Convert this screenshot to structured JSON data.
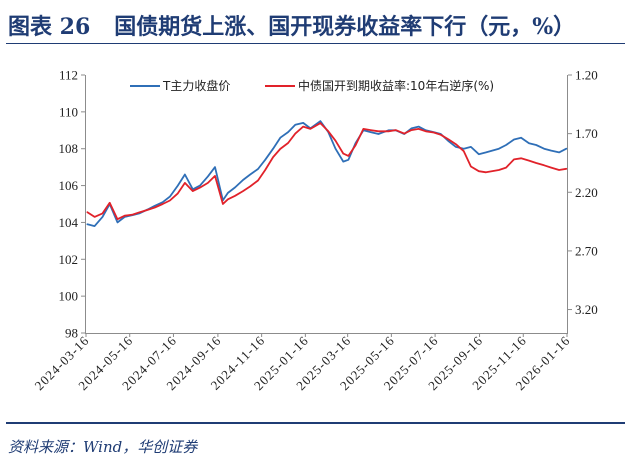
{
  "title": {
    "figure_no": "图表 26",
    "text": "国债期货上涨、国开现券收益率下行（元，%）"
  },
  "source": "资料来源：Wind，华创证券",
  "colors": {
    "title": "#1f3c74",
    "rule": "#1f3c74",
    "axis": "#8c8c8c",
    "series_t": "#2f6fb7",
    "series_yield": "#e1222a"
  },
  "chart_data": {
    "type": "line",
    "legend": "top",
    "grid": false,
    "xlim": [
      "2024-03-16",
      "2026-01-16"
    ],
    "x_ticks": [
      "2024-03-16",
      "2024-05-16",
      "2024-07-16",
      "2024-09-16",
      "2024-11-16",
      "2025-01-16",
      "2025-03-16",
      "2025-05-16",
      "2025-07-16",
      "2025-09-16",
      "2025-11-16",
      "2026-01-16"
    ],
    "y_left": {
      "ylim": [
        98,
        112
      ],
      "ticks": [
        98,
        100,
        102,
        104,
        106,
        108,
        110,
        112
      ]
    },
    "y_right": {
      "ylim": [
        1.2,
        3.4
      ],
      "reversed": true,
      "ticks": [
        1.2,
        1.7,
        2.2,
        2.7,
        3.2
      ]
    },
    "x": [
      "2024-03-18",
      "2024-03-28",
      "2024-04-08",
      "2024-04-18",
      "2024-04-29",
      "2024-05-09",
      "2024-05-20",
      "2024-05-30",
      "2024-06-10",
      "2024-06-20",
      "2024-07-01",
      "2024-07-11",
      "2024-07-22",
      "2024-08-01",
      "2024-08-12",
      "2024-08-22",
      "2024-09-02",
      "2024-09-12",
      "2024-09-23",
      "2024-09-30",
      "2024-10-10",
      "2024-10-21",
      "2024-10-31",
      "2024-11-11",
      "2024-11-21",
      "2024-12-02",
      "2024-12-12",
      "2024-12-23",
      "2025-01-02",
      "2025-01-13",
      "2025-01-23",
      "2025-02-06",
      "2025-02-17",
      "2025-02-27",
      "2025-03-10",
      "2025-03-17",
      "2025-03-27",
      "2025-04-07",
      "2025-04-17",
      "2025-04-28",
      "2025-05-12",
      "2025-05-22",
      "2025-06-03",
      "2025-06-13",
      "2025-06-23",
      "2025-07-03",
      "2025-07-14",
      "2025-07-24",
      "2025-08-04",
      "2025-08-14",
      "2025-08-25",
      "2025-09-04",
      "2025-09-15",
      "2025-09-25",
      "2025-10-13",
      "2025-10-23",
      "2025-11-03",
      "2025-11-13",
      "2025-11-24",
      "2025-12-04",
      "2025-12-15",
      "2025-12-25",
      "2026-01-05",
      "2026-01-15"
    ],
    "series": [
      {
        "name": "T主力收盘价",
        "axis": "left",
        "values": [
          103.9,
          103.8,
          104.3,
          105.0,
          104.0,
          104.3,
          104.4,
          104.5,
          104.7,
          104.9,
          105.1,
          105.4,
          106.0,
          106.6,
          105.8,
          106.0,
          106.5,
          107.0,
          105.2,
          105.6,
          105.9,
          106.3,
          106.6,
          106.9,
          107.4,
          108.0,
          108.6,
          108.9,
          109.3,
          109.4,
          109.1,
          109.5,
          108.9,
          108.0,
          107.3,
          107.4,
          108.3,
          109.0,
          108.9,
          108.8,
          109.0,
          109.0,
          108.8,
          109.1,
          109.2,
          109.0,
          108.9,
          108.8,
          108.4,
          108.1,
          108.0,
          108.1,
          107.7,
          107.8,
          108.0,
          108.2,
          108.5,
          108.6,
          108.3,
          108.2,
          108.0,
          107.9,
          107.8,
          108.0
        ]
      },
      {
        "name": "中债国开到期收益率:10年右逆序(%)",
        "axis": "right",
        "values": [
          2.37,
          2.41,
          2.38,
          2.29,
          2.43,
          2.4,
          2.39,
          2.37,
          2.35,
          2.33,
          2.3,
          2.27,
          2.21,
          2.12,
          2.19,
          2.16,
          2.12,
          2.06,
          2.3,
          2.26,
          2.23,
          2.19,
          2.15,
          2.1,
          2.01,
          1.9,
          1.83,
          1.78,
          1.7,
          1.64,
          1.66,
          1.61,
          1.68,
          1.76,
          1.87,
          1.89,
          1.8,
          1.66,
          1.67,
          1.68,
          1.68,
          1.67,
          1.7,
          1.67,
          1.66,
          1.68,
          1.69,
          1.71,
          1.75,
          1.79,
          1.85,
          1.98,
          2.02,
          2.03,
          2.01,
          1.99,
          1.92,
          1.91,
          1.93,
          1.95,
          1.97,
          1.99,
          2.01,
          2.0
        ]
      }
    ]
  }
}
